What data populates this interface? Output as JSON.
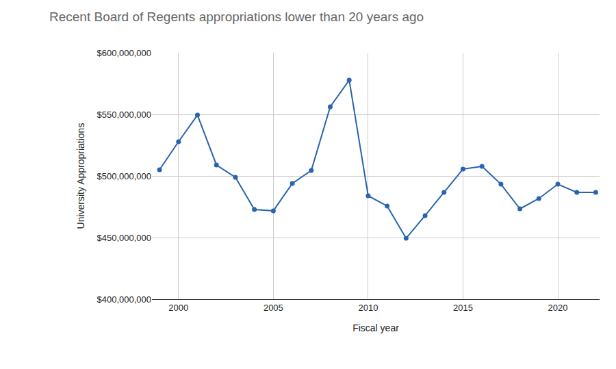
{
  "chart_data": {
    "type": "line",
    "title": "Recent Board of Regents appropriations lower than 20 years ago",
    "x_label": "Fiscal year",
    "y_label": "University Appropriations",
    "x": [
      1999,
      2000,
      2001,
      2002,
      2003,
      2004,
      2005,
      2006,
      2007,
      2008,
      2009,
      2010,
      2011,
      2012,
      2013,
      2014,
      2015,
      2016,
      2017,
      2018,
      2019,
      2020,
      2021,
      2022
    ],
    "values": [
      505000000,
      527800000,
      549400000,
      508900000,
      498900000,
      472800000,
      471700000,
      493900000,
      504400000,
      556100000,
      577800000,
      483900000,
      475600000,
      449400000,
      467800000,
      486700000,
      505600000,
      507800000,
      493300000,
      473300000,
      481700000,
      493300000,
      486700000,
      486700000
    ],
    "color": "#2a64ad",
    "marker": "circle",
    "xlim": [
      1998.6,
      2022.2
    ],
    "xticks": [
      2000,
      2005,
      2010,
      2015,
      2020
    ],
    "ylim": [
      400000000,
      600000000
    ],
    "yticks": [
      {
        "value": 400000000,
        "label": "$400,000,000"
      },
      {
        "value": 450000000,
        "label": "$450,000,000"
      },
      {
        "value": 500000000,
        "label": "$500,000,000"
      },
      {
        "value": 550000000,
        "label": "$550,000,000"
      },
      {
        "value": 600000000,
        "label": "$600,000,000"
      }
    ],
    "grid": true
  }
}
